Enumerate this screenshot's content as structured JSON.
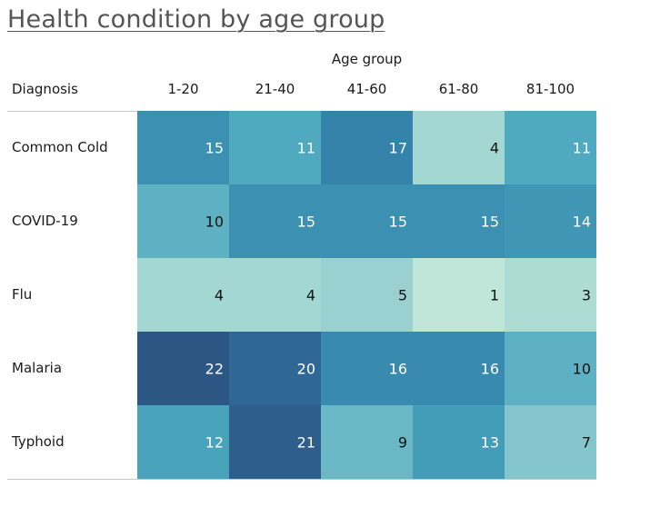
{
  "chart_data": {
    "type": "heatmap",
    "title": "Health condition by age group",
    "column_group_label": "Age group",
    "row_header": "Diagnosis",
    "columns": [
      "1-20",
      "21-40",
      "41-60",
      "61-80",
      "81-100"
    ],
    "rows": [
      "Common Cold",
      "COVID-19",
      "Flu",
      "Malaria",
      "Typhoid"
    ],
    "values": [
      [
        15,
        11,
        17,
        4,
        11
      ],
      [
        10,
        15,
        15,
        15,
        14
      ],
      [
        4,
        4,
        5,
        1,
        3
      ],
      [
        22,
        20,
        16,
        16,
        10
      ],
      [
        12,
        21,
        9,
        13,
        7
      ]
    ],
    "color_scale": [
      "#c0e6d9",
      "#8ecbcd",
      "#4aa6bd",
      "#3585ad",
      "#2c5684"
    ],
    "value_range": [
      1,
      22
    ]
  }
}
